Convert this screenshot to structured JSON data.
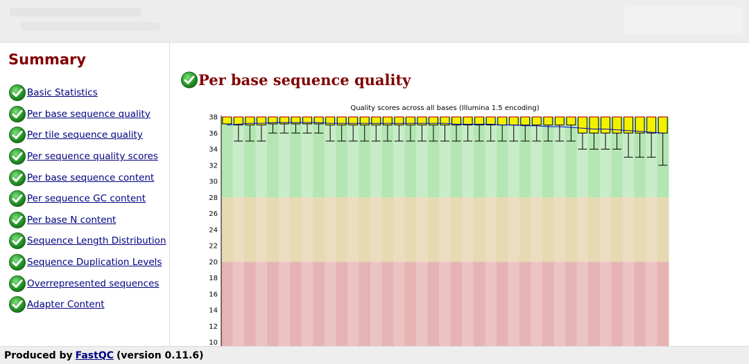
{
  "sidebar": {
    "title": "Summary",
    "items": [
      {
        "label": "Basic Statistics",
        "status": "pass"
      },
      {
        "label": "Per base sequence quality",
        "status": "pass"
      },
      {
        "label": "Per tile sequence quality",
        "status": "pass"
      },
      {
        "label": "Per sequence quality scores",
        "status": "pass"
      },
      {
        "label": "Per base sequence content",
        "status": "pass"
      },
      {
        "label": "Per sequence GC content",
        "status": "pass"
      },
      {
        "label": "Per base N content",
        "status": "pass"
      },
      {
        "label": "Sequence Length Distribution",
        "status": "pass"
      },
      {
        "label": "Sequence Duplication Levels",
        "status": "pass"
      },
      {
        "label": "Overrepresented sequences",
        "status": "pass"
      },
      {
        "label": "Adapter Content",
        "status": "pass"
      }
    ]
  },
  "main": {
    "module_title": "Per base sequence quality",
    "status_icon": "check-pass-icon"
  },
  "chart_data": {
    "type": "box",
    "title": "Quality scores across all bases (Illumina 1.5 encoding)",
    "ylim": [
      10,
      38
    ],
    "yticks": [
      10,
      12,
      14,
      16,
      18,
      20,
      22,
      24,
      26,
      28,
      30,
      32,
      34,
      36,
      38
    ],
    "zones": [
      {
        "from": 28,
        "to": 38,
        "color": "#b3e6b3",
        "color_alt": "#c8ecc8"
      },
      {
        "from": 20,
        "to": 28,
        "color": "#e6dab3",
        "color_alt": "#ecdcc0"
      },
      {
        "from": 10,
        "to": 20,
        "color": "#e6b3b3",
        "color_alt": "#ecc3c3"
      }
    ],
    "positions": 39,
    "box_color": "#f2f200",
    "median_color": "#cc0000",
    "mean_color": "#0000cc",
    "boxes": [
      {
        "q1": 38,
        "q3": 38,
        "med": 38,
        "low": 38,
        "high": 38,
        "mean": 37.0
      },
      {
        "q1": 37,
        "q3": 38,
        "med": 38,
        "low": 35,
        "high": 38,
        "mean": 37.1
      },
      {
        "q1": 37,
        "q3": 38,
        "med": 38,
        "low": 35,
        "high": 38,
        "mean": 37.2
      },
      {
        "q1": 37,
        "q3": 38,
        "med": 38,
        "low": 35,
        "high": 38,
        "mean": 37.2
      },
      {
        "q1": 38,
        "q3": 38,
        "med": 38,
        "low": 36,
        "high": 38,
        "mean": 37.3
      },
      {
        "q1": 38,
        "q3": 38,
        "med": 38,
        "low": 36,
        "high": 38,
        "mean": 37.3
      },
      {
        "q1": 38,
        "q3": 38,
        "med": 38,
        "low": 36,
        "high": 38,
        "mean": 37.3
      },
      {
        "q1": 38,
        "q3": 38,
        "med": 38,
        "low": 36,
        "high": 38,
        "mean": 37.3
      },
      {
        "q1": 38,
        "q3": 38,
        "med": 38,
        "low": 36,
        "high": 38,
        "mean": 37.3
      },
      {
        "q1": 37,
        "q3": 38,
        "med": 38,
        "low": 35,
        "high": 38,
        "mean": 37.2
      },
      {
        "q1": 37,
        "q3": 38,
        "med": 38,
        "low": 35,
        "high": 38,
        "mean": 37.2
      },
      {
        "q1": 37,
        "q3": 38,
        "med": 38,
        "low": 35,
        "high": 38,
        "mean": 37.2
      },
      {
        "q1": 37,
        "q3": 38,
        "med": 38,
        "low": 35,
        "high": 38,
        "mean": 37.2
      },
      {
        "q1": 37,
        "q3": 38,
        "med": 38,
        "low": 35,
        "high": 38,
        "mean": 37.2
      },
      {
        "q1": 37,
        "q3": 38,
        "med": 38,
        "low": 35,
        "high": 38,
        "mean": 37.2
      },
      {
        "q1": 37,
        "q3": 38,
        "med": 38,
        "low": 35,
        "high": 38,
        "mean": 37.2
      },
      {
        "q1": 37,
        "q3": 38,
        "med": 38,
        "low": 35,
        "high": 38,
        "mean": 37.2
      },
      {
        "q1": 37,
        "q3": 38,
        "med": 38,
        "low": 35,
        "high": 38,
        "mean": 37.2
      },
      {
        "q1": 37,
        "q3": 38,
        "med": 38,
        "low": 35,
        "high": 38,
        "mean": 37.2
      },
      {
        "q1": 37,
        "q3": 38,
        "med": 38,
        "low": 35,
        "high": 38,
        "mean": 37.2
      },
      {
        "q1": 37,
        "q3": 38,
        "med": 38,
        "low": 35,
        "high": 38,
        "mean": 37.1
      },
      {
        "q1": 37,
        "q3": 38,
        "med": 38,
        "low": 35,
        "high": 38,
        "mean": 37.1
      },
      {
        "q1": 37,
        "q3": 38,
        "med": 38,
        "low": 35,
        "high": 38,
        "mean": 37.1
      },
      {
        "q1": 37,
        "q3": 38,
        "med": 38,
        "low": 35,
        "high": 38,
        "mean": 37.1
      },
      {
        "q1": 37,
        "q3": 38,
        "med": 38,
        "low": 35,
        "high": 38,
        "mean": 37.0
      },
      {
        "q1": 37,
        "q3": 38,
        "med": 38,
        "low": 35,
        "high": 38,
        "mean": 37.0
      },
      {
        "q1": 37,
        "q3": 38,
        "med": 38,
        "low": 35,
        "high": 38,
        "mean": 36.9
      },
      {
        "q1": 37,
        "q3": 38,
        "med": 38,
        "low": 35,
        "high": 38,
        "mean": 36.9
      },
      {
        "q1": 37,
        "q3": 38,
        "med": 38,
        "low": 35,
        "high": 38,
        "mean": 36.8
      },
      {
        "q1": 37,
        "q3": 38,
        "med": 38,
        "low": 35,
        "high": 38,
        "mean": 36.8
      },
      {
        "q1": 37,
        "q3": 38,
        "med": 38,
        "low": 35,
        "high": 38,
        "mean": 36.7
      },
      {
        "q1": 36,
        "q3": 38,
        "med": 38,
        "low": 34,
        "high": 38,
        "mean": 36.6
      },
      {
        "q1": 36,
        "q3": 38,
        "med": 38,
        "low": 34,
        "high": 38,
        "mean": 36.5
      },
      {
        "q1": 36,
        "q3": 38,
        "med": 38,
        "low": 34,
        "high": 38,
        "mean": 36.5
      },
      {
        "q1": 36,
        "q3": 38,
        "med": 38,
        "low": 34,
        "high": 38,
        "mean": 36.4
      },
      {
        "q1": 36,
        "q3": 38,
        "med": 38,
        "low": 33,
        "high": 38,
        "mean": 36.3
      },
      {
        "q1": 36,
        "q3": 38,
        "med": 38,
        "low": 33,
        "high": 38,
        "mean": 36.2
      },
      {
        "q1": 36,
        "q3": 38,
        "med": 38,
        "low": 33,
        "high": 38,
        "mean": 36.1
      },
      {
        "q1": 36,
        "q3": 38,
        "med": 38,
        "low": 32,
        "high": 38,
        "mean": 36.0
      }
    ]
  },
  "footer": {
    "prefix": "Produced by",
    "link": "FastQC",
    "suffix": "(version 0.11.6)"
  }
}
